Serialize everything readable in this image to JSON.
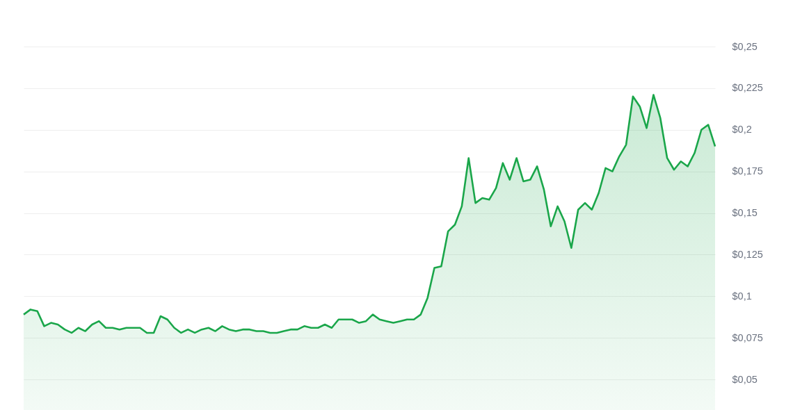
{
  "chart_data": {
    "type": "area",
    "categories": [
      null,
      null,
      null,
      null,
      null,
      null,
      null,
      null,
      null,
      null,
      null,
      null,
      null,
      null,
      null,
      null,
      null,
      null,
      null,
      null,
      null,
      null,
      null,
      null,
      null,
      null,
      null,
      null,
      null,
      null,
      null,
      null,
      null,
      null,
      null,
      null,
      null,
      null,
      null,
      null,
      null,
      null,
      null,
      null,
      null,
      null,
      null,
      null,
      null,
      null,
      null,
      null,
      null,
      null,
      null,
      null,
      null,
      null,
      null,
      null,
      null,
      null,
      null,
      null,
      null,
      null,
      null,
      null,
      null,
      null,
      null,
      null,
      null,
      null,
      null,
      null,
      null,
      null,
      null,
      null,
      null,
      null,
      null,
      null,
      null,
      null,
      null,
      null,
      null,
      null,
      null,
      null,
      null,
      null,
      null,
      null,
      null,
      null,
      null,
      null,
      null,
      null
    ],
    "series": [
      {
        "color": "#1aa64a",
        "values": [
          0.089,
          0.092,
          0.091,
          0.082,
          0.084,
          0.083,
          0.08,
          0.078,
          0.081,
          0.079,
          0.083,
          0.085,
          0.081,
          0.081,
          0.08,
          0.081,
          0.081,
          0.081,
          0.078,
          0.078,
          0.088,
          0.086,
          0.081,
          0.078,
          0.08,
          0.078,
          0.08,
          0.081,
          0.079,
          0.082,
          0.08,
          0.079,
          0.08,
          0.08,
          0.079,
          0.079,
          0.078,
          0.078,
          0.079,
          0.08,
          0.08,
          0.082,
          0.081,
          0.081,
          0.083,
          0.081,
          0.086,
          0.086,
          0.086,
          0.084,
          0.085,
          0.089,
          0.086,
          0.085,
          0.084,
          0.085,
          0.086,
          0.086,
          0.089,
          0.099,
          0.117,
          0.118,
          0.139,
          0.143,
          0.154,
          0.183,
          0.156,
          0.159,
          0.158,
          0.165,
          0.18,
          0.17,
          0.183,
          0.169,
          0.17,
          0.178,
          0.164,
          0.142,
          0.154,
          0.145,
          0.129,
          0.152,
          0.156,
          0.152,
          0.162,
          0.177,
          0.175,
          0.184,
          0.191,
          0.22,
          0.214,
          0.201,
          0.221,
          0.207,
          0.183,
          0.176,
          0.181,
          0.178,
          0.186,
          0.2,
          0.203,
          0.19
        ]
      }
    ],
    "ylim": [
      0.05,
      0.25
    ],
    "yticks": [
      {
        "value": 0.05,
        "label": "$0,05"
      },
      {
        "value": 0.075,
        "label": "$0,075"
      },
      {
        "value": 0.1,
        "label": "$0,1"
      },
      {
        "value": 0.125,
        "label": "$0,125"
      },
      {
        "value": 0.15,
        "label": "$0,15"
      },
      {
        "value": 0.175,
        "label": "$0,175"
      },
      {
        "value": 0.2,
        "label": "$0,2"
      },
      {
        "value": 0.225,
        "label": "$0,225"
      },
      {
        "value": 0.25,
        "label": "$0,25"
      }
    ],
    "grid": "y",
    "tick_labels": "y"
  }
}
